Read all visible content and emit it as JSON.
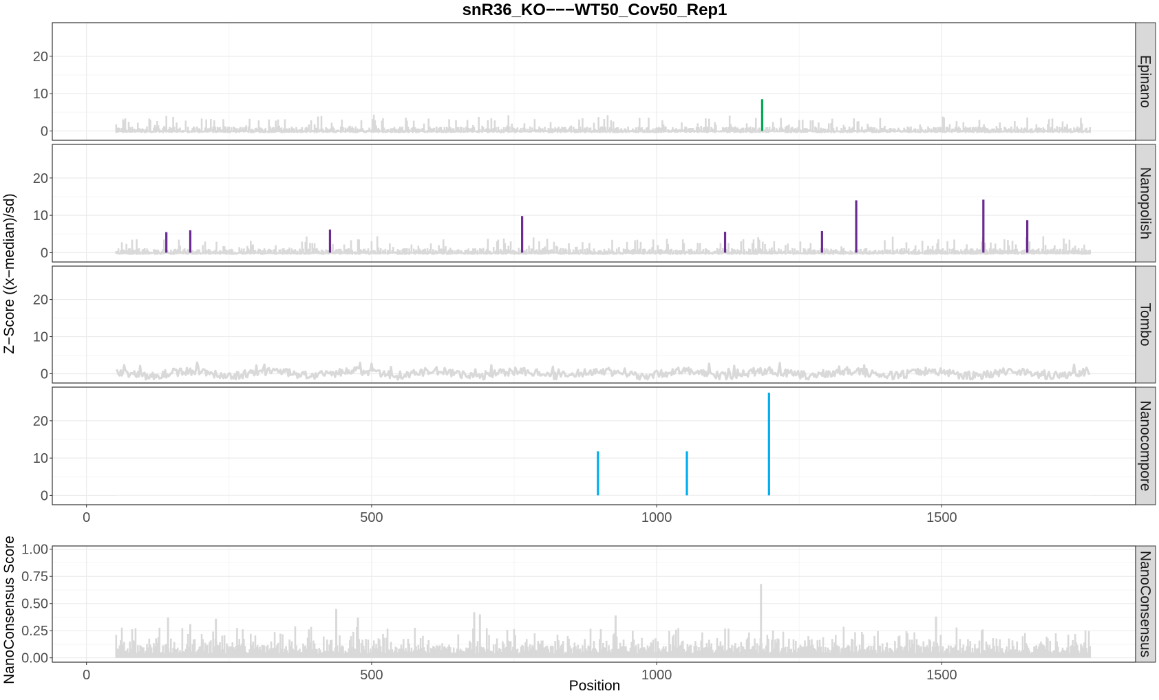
{
  "chart_data": {
    "type": "bar",
    "title": "snR36_KO−−−WT50_Cov50_Rep1",
    "xlabel": "Position",
    "ylabel_top": "Z−Score ((x−median)/sd)",
    "ylabel_bottom": "NanoConsensus Score",
    "xlim": [
      -60,
      1840
    ],
    "x_ticks": [
      0,
      500,
      1000,
      1500
    ],
    "x_tick_labels": [
      "0",
      "500",
      "1000",
      "1500"
    ],
    "grid": true,
    "sequence_range": [
      52,
      1760
    ],
    "panels_zscore": {
      "ylim": [
        -2.5,
        29
      ],
      "y_ticks": [
        0,
        10,
        20
      ],
      "y_tick_labels": [
        "0",
        "10",
        "20"
      ],
      "panels": [
        {
          "label": "Epinano",
          "background": "bar",
          "highlight_color": "#00a651",
          "highlights": [
            {
              "x": 1185,
              "y": 8.5
            }
          ]
        },
        {
          "label": "Nanopolish",
          "background": "bar",
          "highlight_color": "#6a2c91",
          "highlights": [
            {
              "x": 140,
              "y": 5.5
            },
            {
              "x": 182,
              "y": 6.0
            },
            {
              "x": 427,
              "y": 6.2
            },
            {
              "x": 764,
              "y": 9.8
            },
            {
              "x": 1120,
              "y": 5.6
            },
            {
              "x": 1290,
              "y": 5.8
            },
            {
              "x": 1350,
              "y": 14.0
            },
            {
              "x": 1573,
              "y": 14.2
            },
            {
              "x": 1650,
              "y": 8.7
            }
          ]
        },
        {
          "label": "Tombo",
          "background": "line",
          "highlight_color": "#808080",
          "highlights": []
        },
        {
          "label": "Nanocompore",
          "background": "none",
          "highlight_color": "#00aeef",
          "highlights": [
            {
              "x": 897,
              "y": 11.8
            },
            {
              "x": 1053,
              "y": 11.8
            },
            {
              "x": 1197,
              "y": 27.5
            }
          ]
        }
      ]
    },
    "panel_consensus": {
      "label": "NanoConsensus",
      "ylim": [
        -0.04,
        1.03
      ],
      "y_ticks": [
        0,
        0.25,
        0.5,
        0.75,
        1.0
      ],
      "y_tick_labels": [
        "0.00",
        "0.25",
        "0.50",
        "0.75",
        "1.00"
      ],
      "peaks": [
        {
          "x": 143,
          "y": 0.37
        },
        {
          "x": 182,
          "y": 0.31
        },
        {
          "x": 227,
          "y": 0.36
        },
        {
          "x": 438,
          "y": 0.45
        },
        {
          "x": 476,
          "y": 0.37
        },
        {
          "x": 680,
          "y": 0.42
        },
        {
          "x": 690,
          "y": 0.4
        },
        {
          "x": 928,
          "y": 0.39
        },
        {
          "x": 1183,
          "y": 0.68
        },
        {
          "x": 1490,
          "y": 0.38
        }
      ]
    },
    "colors": {
      "background_bars": "#d9d9d9",
      "strip": "#d9d9d9",
      "grid_major": "#ebebeb",
      "grid_minor": "#f5f5f5",
      "panel_border": "#333333",
      "tick_text": "#4d4d4d"
    }
  }
}
